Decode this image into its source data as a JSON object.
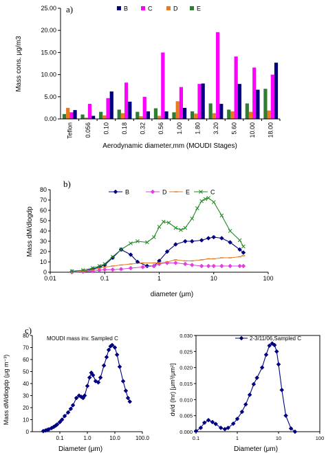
{
  "chart_data": [
    {
      "type": "bar",
      "panel_label": "a)",
      "categories": [
        "Teflon",
        "0.056",
        "0.10",
        "0.18",
        "0.32",
        "0.56",
        "1.00",
        "1.80",
        "3.20",
        "5.60",
        "10.00",
        "18.00"
      ],
      "series": [
        {
          "name": "E",
          "color": "#2e7d32",
          "values": [
            1.1,
            1.0,
            1.6,
            2.1,
            1.6,
            2.4,
            1.5,
            1.7,
            3.5,
            2.1,
            3.5,
            6.8
          ]
        },
        {
          "name": "D",
          "color": "#e8791f",
          "values": [
            2.5,
            0.3,
            0.8,
            1.3,
            0.6,
            0.7,
            4.0,
            1.2,
            1.3,
            1.7,
            1.6,
            1.9
          ]
        },
        {
          "name": "C",
          "color": "#ff00ff",
          "values": [
            1.5,
            3.4,
            4.7,
            8.2,
            5.0,
            15.0,
            7.2,
            7.9,
            19.6,
            14.1,
            11.6,
            10.0
          ]
        },
        {
          "name": "B",
          "color": "#000080",
          "values": [
            2.0,
            0.7,
            6.2,
            3.9,
            1.7,
            1.7,
            2.5,
            8.0,
            3.4,
            7.9,
            6.6,
            12.7
          ]
        }
      ],
      "legend_order": [
        "B",
        "C",
        "D",
        "E"
      ],
      "yticks": [
        "0.00",
        "5.00",
        "10.00",
        "15.00",
        "20.00",
        "25.00"
      ],
      "ylim": [
        0,
        25
      ],
      "ylabel": "Mass cons. μg/m3",
      "xlabel": "Aerodynamic diameter,mm (MOUDI Stages)"
    },
    {
      "type": "line",
      "panel_label": "b)",
      "xscale": "log",
      "xlim": [
        0.01,
        100
      ],
      "ylim": [
        0,
        80
      ],
      "xticks": [
        "0.01",
        "0.1",
        "1",
        "10",
        "100"
      ],
      "yticks": [
        "0",
        "10",
        "20",
        "30",
        "40",
        "50",
        "60",
        "70",
        "80"
      ],
      "xlabel": "diameter (μm)",
      "ylabel": "Mass dM/dlogdp",
      "series": [
        {
          "name": "B",
          "color": "#000080",
          "marker": "diamond",
          "x": [
            0.025,
            0.04,
            0.06,
            0.08,
            0.1,
            0.14,
            0.2,
            0.3,
            0.4,
            0.6,
            0.8,
            1,
            1.4,
            2,
            3,
            4,
            6,
            8,
            10,
            14,
            20,
            30,
            35
          ],
          "y": [
            0.5,
            1,
            3,
            5,
            7,
            14,
            22,
            17,
            10,
            6,
            6,
            11,
            20,
            27,
            30,
            30,
            31,
            33,
            34,
            33,
            29,
            22,
            19
          ]
        },
        {
          "name": "D",
          "color": "#e040e0",
          "marker": "diamond",
          "x": [
            0.025,
            0.04,
            0.06,
            0.08,
            0.1,
            0.14,
            0.2,
            0.3,
            0.5,
            0.8,
            1,
            1.4,
            2,
            3,
            4,
            6,
            8,
            10,
            14,
            20,
            30,
            35
          ],
          "y": [
            0,
            0.5,
            1,
            2,
            2.5,
            2.5,
            3,
            4,
            5,
            6,
            8,
            9,
            9,
            8,
            7,
            6,
            6,
            6,
            6,
            6,
            6,
            6
          ]
        },
        {
          "name": "E",
          "color": "#e8791f",
          "marker": "dash",
          "x": [
            0.025,
            0.04,
            0.06,
            0.08,
            0.1,
            0.14,
            0.2,
            0.3,
            0.5,
            0.8,
            1,
            1.4,
            2,
            3,
            4,
            6,
            8,
            10,
            14,
            20,
            30,
            35
          ],
          "y": [
            0,
            1,
            2,
            4,
            5,
            6,
            7,
            8,
            9,
            9,
            9,
            10,
            12,
            11,
            11,
            12,
            13,
            13,
            14,
            14,
            15,
            16
          ]
        },
        {
          "name": "C",
          "color": "#1f8a1f",
          "marker": "x",
          "x": [
            0.025,
            0.04,
            0.06,
            0.08,
            0.1,
            0.14,
            0.2,
            0.3,
            0.4,
            0.6,
            0.8,
            1,
            1.2,
            1.5,
            2,
            2.5,
            3,
            4,
            5,
            6,
            7,
            8,
            10,
            14,
            20,
            30,
            35
          ],
          "y": [
            1,
            2,
            4,
            6,
            8,
            15,
            22,
            28,
            30,
            29,
            34,
            44,
            49,
            48,
            43,
            41,
            43,
            52,
            62,
            69,
            71,
            72,
            68,
            55,
            40,
            31,
            25
          ]
        }
      ]
    },
    {
      "type": "line",
      "panel_label": "c)",
      "title": "MOUDI mass inv. Sampled C",
      "xscale": "log",
      "xlim": [
        0.01,
        100
      ],
      "ylim": [
        0,
        80
      ],
      "xticks": [
        "0.1",
        "1.0",
        "10.0",
        "100.0"
      ],
      "yticks": [
        "0",
        "10",
        "20",
        "30",
        "40",
        "50",
        "60",
        "70",
        "80"
      ],
      "xlabel": "Diameter (μm)",
      "ylabel": "Mass dM/dlogdp (μg m⁻³)",
      "series": [
        {
          "name": "MOUDI mass inv. Sampled C",
          "color": "#000080",
          "marker": "diamond",
          "x": [
            0.025,
            0.03,
            0.035,
            0.04,
            0.05,
            0.06,
            0.07,
            0.08,
            0.1,
            0.12,
            0.15,
            0.2,
            0.25,
            0.3,
            0.4,
            0.5,
            0.6,
            0.7,
            0.8,
            1,
            1.2,
            1.4,
            1.6,
            2,
            2.5,
            3,
            4,
            5,
            6,
            7,
            8,
            10,
            12,
            15,
            20,
            25,
            30,
            35
          ],
          "y": [
            0.5,
            1,
            1.5,
            2,
            3,
            4,
            5,
            6,
            8,
            10,
            13,
            16,
            19,
            22,
            28,
            30,
            29,
            28,
            30,
            38,
            45,
            49,
            47,
            42,
            41,
            45,
            55,
            62,
            68,
            71,
            72,
            70,
            64,
            54,
            42,
            34,
            28,
            25
          ]
        }
      ]
    },
    {
      "type": "line",
      "panel_label": "",
      "xscale": "log",
      "xlim": [
        0.1,
        100
      ],
      "ylim": [
        0,
        0.03
      ],
      "xticks": [
        "0.1",
        "1",
        "10",
        "100"
      ],
      "yticks": [
        "0.000",
        "0.005",
        "0.010",
        "0.015",
        "0.020",
        "0.025",
        "0.030"
      ],
      "xlabel": "Diameter (μm)",
      "ylabel": "dv/d (lnr) [μm³/μm²]",
      "series": [
        {
          "name": "2-3/11/06,Sampled C",
          "color": "#000080",
          "marker": "diamond",
          "x": [
            0.1,
            0.13,
            0.16,
            0.2,
            0.25,
            0.3,
            0.4,
            0.5,
            0.6,
            0.8,
            1,
            1.3,
            1.6,
            2,
            2.5,
            3,
            4,
            5,
            6,
            7,
            8,
            9,
            10,
            12,
            15,
            20,
            25
          ],
          "y": [
            0.0002,
            0.0012,
            0.0028,
            0.0036,
            0.003,
            0.0024,
            0.0012,
            0.0008,
            0.0012,
            0.0025,
            0.004,
            0.0062,
            0.0085,
            0.0115,
            0.0148,
            0.0168,
            0.02,
            0.024,
            0.0268,
            0.0275,
            0.027,
            0.025,
            0.021,
            0.013,
            0.005,
            0.001,
            0.0
          ]
        }
      ]
    }
  ]
}
